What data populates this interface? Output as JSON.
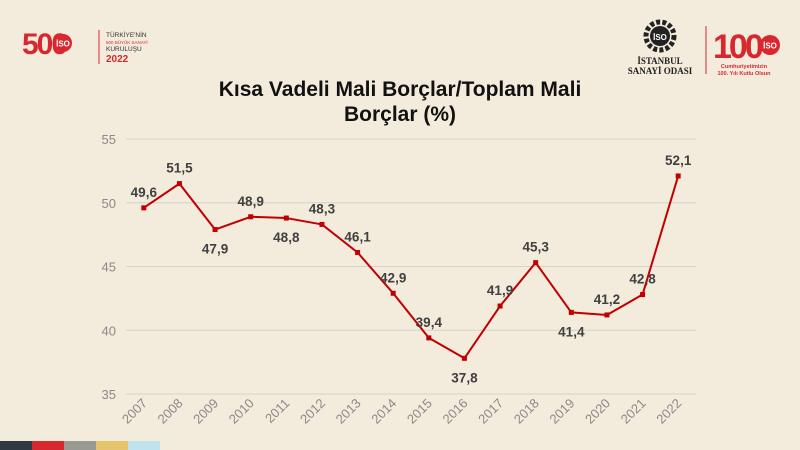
{
  "header": {
    "left_logo": {
      "number": "500",
      "line1": "TÜRKİYE'NİN",
      "line2": "500 BÜYÜK SANAYİ",
      "line3": "KURULUŞU",
      "year": "2022",
      "badge": "İSO"
    },
    "right_logo": {
      "badge": "İSO",
      "name_line1": "İSTANBUL",
      "name_line2": "SANAYİ ODASI",
      "anniversary": "100",
      "anniversary_badge": "İSO",
      "tagline1": "Cumhuriyetimizin",
      "tagline2": "100. Yılı Kutlu Olsun"
    }
  },
  "colors": {
    "background": "#f3ebdc",
    "line": "#c00000",
    "brand_red": "#d7282f",
    "grid": "#d5d2cc"
  },
  "footer_stripe": [
    "#2f3a45",
    "#d7282f",
    "#9a9a94",
    "#e6c46b",
    "#bfe3ef"
  ],
  "chart_data": {
    "type": "line",
    "title": "Kısa Vadeli Mali Borçlar/Toplam Mali Borçlar (%)",
    "title_lines": [
      "Kısa Vadeli Mali Borçlar/Toplam Mali",
      "Borçlar (%)"
    ],
    "categories": [
      "2007",
      "2008",
      "2009",
      "2010",
      "2011",
      "2012",
      "2013",
      "2014",
      "2015",
      "2016",
      "2017",
      "2018",
      "2019",
      "2020",
      "2021",
      "2022"
    ],
    "values": [
      49.6,
      51.5,
      47.9,
      48.9,
      48.8,
      48.3,
      46.1,
      42.9,
      39.4,
      37.8,
      41.9,
      45.3,
      41.4,
      41.2,
      42.8,
      52.1
    ],
    "data_labels": [
      "49,6",
      "51,5",
      "47,9",
      "48,9",
      "48,8",
      "48,3",
      "46,1",
      "42,9",
      "39,4",
      "37,8",
      "41,9",
      "45,3",
      "41,4",
      "41,2",
      "42,8",
      "52,1"
    ],
    "ylim": [
      35,
      55
    ],
    "yticks": [
      35,
      40,
      45,
      50,
      55
    ],
    "xlabel": "",
    "ylabel": "",
    "grid": true,
    "legend": "none"
  }
}
